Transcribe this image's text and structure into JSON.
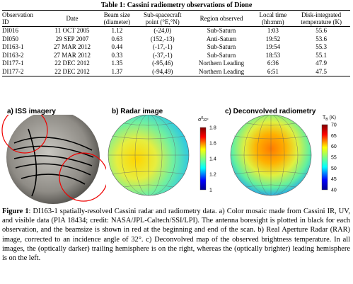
{
  "table": {
    "title": "Table 1: Cassini radiometry observations of Dione",
    "header": [
      [
        "Observation",
        "ID"
      ],
      [
        "Date"
      ],
      [
        "Beam size",
        "(diameter)"
      ],
      [
        "Sub-spacecraft",
        "point (°E,°N)"
      ],
      [
        "Region observed"
      ],
      [
        "Local time",
        "(hh:mm)"
      ],
      [
        "Disk-integrated",
        "temperature (K)"
      ]
    ],
    "rows": [
      [
        "DI016",
        "11 OCT 2005",
        "1.12",
        "(-24,0)",
        "Sub-Saturn",
        "1:03",
        "55.6"
      ],
      [
        "DI050",
        "29 SEP 2007",
        "0.63",
        "(152,-13)",
        "Anti-Saturn",
        "19:52",
        "53.6"
      ],
      [
        "DI163-1",
        "27 MAR 2012",
        "0.44",
        "(-17,-1)",
        "Sub-Saturn",
        "19:54",
        "55.3"
      ],
      [
        "DI163-2",
        "27 MAR 2012",
        "0.33",
        "(-37,-1)",
        "Sub-Saturn",
        "18:53",
        "55.1"
      ],
      [
        "DI177-1",
        "22 DEC 2012",
        "1.35",
        "(-95,46)",
        "Northern Leading",
        "6:36",
        "47.9"
      ],
      [
        "DI177-2",
        "22 DEC 2012",
        "1.37",
        "(-94,49)",
        "Northern Leading",
        "6:51",
        "47.5"
      ]
    ]
  },
  "panels": [
    {
      "label": "a) ISS imagery"
    },
    {
      "label": "b) Radar image",
      "colorbar": {
        "symbol": "σ",
        "sup": "0",
        "sub": "32°",
        "ticks": [
          "1.8",
          "1.6",
          "1.4",
          "1.2",
          "1"
        ]
      }
    },
    {
      "label": "c) Deconvolved radiometry",
      "colorbar": {
        "symbol": "T",
        "sub": "B",
        "unit": "(K)",
        "ticks": [
          "70",
          "65",
          "60",
          "55",
          "50",
          "45",
          "40"
        ]
      }
    }
  ],
  "caption": {
    "label": "Figure 1",
    "text": ": DI163-1 spatially-resolved Cassini radar and radiometry data. a) Color mosaic made from Cassini IR, UV, and visible data (PIA 18434; credit: NASA/JPL-Caltech/SSI/LPI). The antenna boresight is plotted in black for each observation, and the beamsize is shown in red at the beginning and end of the scan. b) Real Aperture Radar (RAR) image, corrected to an incidence angle of 32°. c) Deconvolved map of the observed brightness temperature. In all images, the (optically darker) trailing hemisphere is on the right, whereas the (optically brighter) leading hemisphere is on the left."
  }
}
